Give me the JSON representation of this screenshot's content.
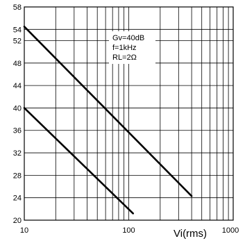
{
  "chart_data": {
    "type": "line",
    "xlabel": "Vi(rms)",
    "ylabel": "",
    "x_scale": "log",
    "xlim": [
      10,
      1000
    ],
    "ylim": [
      20,
      58
    ],
    "x_ticks": [
      "10",
      "100",
      "1000"
    ],
    "y_ticks": [
      "20",
      "24",
      "28",
      "32",
      "36",
      "40",
      "44",
      "48",
      "52",
      "54",
      "58"
    ],
    "grid": true,
    "annotation": [
      "Gv=40dB",
      "f=1kHz",
      "RL=2Ω"
    ],
    "series": [
      {
        "x": [
          10,
          400
        ],
        "y": [
          54.5,
          24.3
        ]
      },
      {
        "x": [
          10,
          110
        ],
        "y": [
          40,
          21.2
        ]
      }
    ]
  }
}
